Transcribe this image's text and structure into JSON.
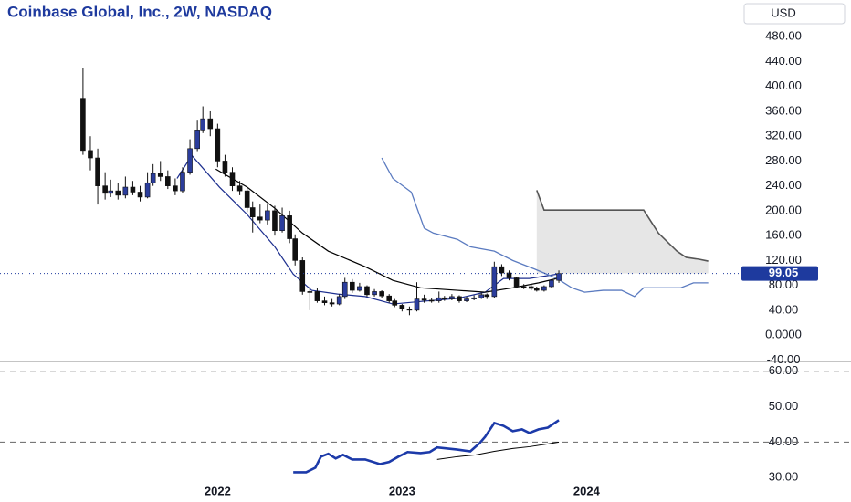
{
  "chart_data": [
    {
      "type": "candlestick",
      "title": "Coinbase Global, Inc., 2W, NASDAQ",
      "currency": "USD",
      "xlim": [
        2020.82,
        2024.83
      ],
      "ylim": [
        -41,
        498
      ],
      "yticks": [
        {
          "value": -40,
          "label": "-40.00"
        },
        {
          "value": 0,
          "label": "0.0000"
        },
        {
          "value": 40,
          "label": "40.00"
        },
        {
          "value": 80,
          "label": "80.00"
        },
        {
          "value": 120,
          "label": "120.00"
        },
        {
          "value": 160,
          "label": "160.00"
        },
        {
          "value": 200,
          "label": "200.00"
        },
        {
          "value": 240,
          "label": "240.00"
        },
        {
          "value": 280,
          "label": "280.00"
        },
        {
          "value": 320,
          "label": "320.00"
        },
        {
          "value": 360,
          "label": "360.00"
        },
        {
          "value": 400,
          "label": "400.00"
        },
        {
          "value": 440,
          "label": "440.00"
        },
        {
          "value": 480,
          "label": "480.00"
        }
      ],
      "up_color": "#2b3d9c",
      "down_color": "#111111",
      "x": [
        2021.27,
        2021.31,
        2021.35,
        2021.39,
        2021.42,
        2021.46,
        2021.5,
        2021.54,
        2021.58,
        2021.62,
        2021.65,
        2021.69,
        2021.73,
        2021.77,
        2021.81,
        2021.85,
        2021.89,
        2021.92,
        2021.96,
        2022.0,
        2022.04,
        2022.08,
        2022.12,
        2022.16,
        2022.19,
        2022.23,
        2022.27,
        2022.31,
        2022.35,
        2022.39,
        2022.42,
        2022.46,
        2022.5,
        2022.54,
        2022.58,
        2022.62,
        2022.66,
        2022.69,
        2022.73,
        2022.77,
        2022.81,
        2022.85,
        2022.89,
        2022.93,
        2022.96,
        2023.0,
        2023.04,
        2023.08,
        2023.12,
        2023.16,
        2023.2,
        2023.23,
        2023.27,
        2023.31,
        2023.35,
        2023.39,
        2023.43,
        2023.46,
        2023.5,
        2023.54,
        2023.58,
        2023.62,
        2023.66,
        2023.7,
        2023.73,
        2023.77,
        2023.81,
        2023.85
      ],
      "open": [
        381,
        297,
        285,
        240,
        228,
        232,
        225,
        238,
        230,
        222,
        245,
        260,
        255,
        240,
        232,
        262,
        300,
        330,
        348,
        332,
        280,
        262,
        240,
        232,
        205,
        190,
        185,
        200,
        168,
        192,
        155,
        120,
        70,
        70,
        55,
        52,
        50,
        62,
        85,
        72,
        78,
        65,
        70,
        63,
        55,
        48,
        42,
        40,
        58,
        56,
        55,
        60,
        58,
        62,
        55,
        58,
        60,
        65,
        62,
        110,
        100,
        92,
        78,
        78,
        75,
        72,
        78,
        88
      ],
      "high": [
        429,
        320,
        300,
        262,
        250,
        245,
        255,
        248,
        240,
        262,
        275,
        280,
        265,
        252,
        270,
        315,
        345,
        368,
        360,
        340,
        290,
        270,
        248,
        238,
        215,
        210,
        210,
        208,
        205,
        200,
        162,
        125,
        78,
        75,
        62,
        58,
        66,
        92,
        90,
        84,
        80,
        74,
        72,
        66,
        58,
        50,
        46,
        85,
        65,
        60,
        70,
        63,
        66,
        64,
        62,
        64,
        68,
        67,
        118,
        114,
        104,
        94,
        82,
        82,
        78,
        80,
        90,
        104
      ],
      "low": [
        290,
        265,
        210,
        218,
        222,
        218,
        220,
        225,
        215,
        220,
        240,
        248,
        235,
        225,
        228,
        258,
        296,
        325,
        320,
        270,
        255,
        232,
        225,
        198,
        165,
        180,
        178,
        160,
        165,
        148,
        112,
        65,
        40,
        52,
        48,
        46,
        48,
        58,
        68,
        70,
        62,
        62,
        60,
        52,
        45,
        38,
        32,
        38,
        52,
        52,
        52,
        55,
        56,
        52,
        53,
        56,
        58,
        58,
        60,
        95,
        88,
        75,
        74,
        72,
        70,
        70,
        76,
        84
      ],
      "close": [
        297,
        285,
        240,
        228,
        232,
        225,
        238,
        230,
        222,
        245,
        260,
        255,
        240,
        232,
        262,
        300,
        330,
        348,
        332,
        280,
        262,
        240,
        232,
        205,
        190,
        185,
        200,
        168,
        192,
        155,
        120,
        70,
        70,
        55,
        52,
        50,
        62,
        85,
        72,
        78,
        65,
        70,
        63,
        55,
        48,
        42,
        40,
        58,
        56,
        55,
        60,
        58,
        62,
        55,
        58,
        60,
        65,
        62,
        110,
        100,
        92,
        78,
        78,
        75,
        72,
        78,
        88,
        99.05
      ],
      "series": [
        {
          "color": "#1d2f8f",
          "x": [
            2021.78,
            2021.86,
            2022.01,
            2022.16,
            2022.31,
            2022.41,
            2022.51,
            2022.65,
            2022.8,
            2022.95,
            2023.1,
            2023.3,
            2023.45,
            2023.55,
            2023.69,
            2023.84
          ],
          "values": [
            252,
            289,
            238,
            194,
            142,
            98,
            72,
            66,
            62,
            50,
            54,
            59,
            69,
            91,
            91,
            98
          ]
        },
        {
          "color": "#000000",
          "x": [
            2021.99,
            2022.16,
            2022.31,
            2022.46,
            2022.6,
            2022.8,
            2022.95,
            2023.1,
            2023.3,
            2023.45,
            2023.6,
            2023.74,
            2023.84
          ],
          "values": [
            267,
            238,
            204,
            164,
            135,
            110,
            88,
            76,
            72,
            69,
            76,
            84,
            91
          ]
        },
        {
          "color": "#5b7bc0",
          "x": [
            2022.89,
            2022.95,
            2023.05,
            2023.12,
            2023.17,
            2023.3,
            2023.37,
            2023.5,
            2023.6,
            2023.72,
            2023.84,
            2023.92,
            2023.99,
            2024.09,
            2024.19,
            2024.26,
            2024.31,
            2024.51,
            2024.58,
            2024.66
          ],
          "values": [
            285,
            252,
            230,
            172,
            164,
            154,
            142,
            135,
            120,
            106,
            91,
            76,
            69,
            72,
            72,
            62,
            76,
            76,
            84,
            84
          ]
        }
      ],
      "forecast": {
        "color": "#555555",
        "fill": "#e6e6e6",
        "x": [
          2023.73,
          2023.77,
          2024.31,
          2024.39,
          2024.49,
          2024.54,
          2024.61,
          2024.66
        ],
        "values": [
          233,
          201,
          201,
          164,
          135,
          125,
          122,
          119
        ]
      },
      "last_value": 99.05,
      "last_value_label": "99.05",
      "last_value_color": "#1e3a9e"
    },
    {
      "type": "line",
      "xlim": [
        2020.82,
        2024.83
      ],
      "xticks": [
        2022,
        2023,
        2024
      ],
      "ylim": [
        28,
        62.5
      ],
      "yticks": [
        {
          "value": 30,
          "label": "30.00"
        },
        {
          "value": 40,
          "label": "40.00"
        },
        {
          "value": 50,
          "label": "50.00"
        },
        {
          "value": 60,
          "label": "60.00"
        }
      ],
      "dashed_levels": [
        40,
        60
      ],
      "series": [
        {
          "color": "#1c3aa9",
          "x": [
            2022.41,
            2022.48,
            2022.53,
            2022.56,
            2022.6,
            2022.64,
            2022.68,
            2022.73,
            2022.8,
            2022.88,
            2022.93,
            2022.98,
            2023.03,
            2023.1,
            2023.15,
            2023.19,
            2023.3,
            2023.37,
            2023.42,
            2023.45,
            2023.5,
            2023.55,
            2023.6,
            2023.65,
            2023.69,
            2023.74,
            2023.79,
            2023.85
          ],
          "values": [
            31.5,
            31.5,
            32.8,
            35.9,
            36.7,
            35.4,
            36.4,
            35.1,
            35.1,
            33.8,
            34.4,
            35.9,
            37.2,
            36.9,
            37.2,
            38.5,
            37.9,
            37.4,
            39.7,
            41.5,
            45.4,
            44.6,
            43.1,
            43.6,
            42.6,
            43.6,
            44.1,
            46.2
          ]
        },
        {
          "color": "#000000",
          "x": [
            2023.19,
            2023.3,
            2023.4,
            2023.5,
            2023.6,
            2023.69,
            2023.79,
            2023.85
          ],
          "values": [
            35.1,
            35.9,
            36.4,
            37.4,
            38.2,
            38.7,
            39.5,
            40.0
          ]
        }
      ]
    }
  ]
}
